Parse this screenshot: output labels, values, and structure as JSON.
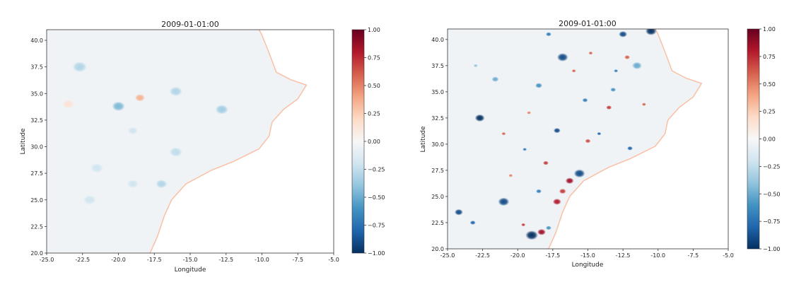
{
  "chart_data": [
    {
      "type": "heatmap",
      "title": "2009-01-01:00",
      "xlabel": "Longitude",
      "ylabel": "Latitude",
      "xlim": [
        -25.0,
        -5.0
      ],
      "ylim": [
        20.0,
        41.0
      ],
      "x_ticks": [
        -25.0,
        -22.5,
        -20.0,
        -17.5,
        -15.0,
        -12.5,
        -10.0,
        -7.5,
        -5.0
      ],
      "x_tick_labels": [
        "-25.0",
        "-22.5",
        "-20.0",
        "-17.5",
        "-15.0",
        "-12.5",
        "-10.0",
        "-7.5",
        "-5.0"
      ],
      "y_ticks": [
        20.0,
        22.5,
        25.0,
        27.5,
        30.0,
        32.5,
        35.0,
        37.5,
        40.0
      ],
      "y_tick_labels": [
        "20.0",
        "22.5",
        "25.0",
        "27.5",
        "30.0",
        "32.5",
        "35.0",
        "37.5",
        "40.0"
      ],
      "colorbar": {
        "range": [
          -1.0,
          1.0
        ],
        "colormap": [
          "#053061",
          "#2166ac",
          "#4393c3",
          "#92c5de",
          "#d1e5f0",
          "#f7f7f7",
          "#fddbc7",
          "#f4a582",
          "#d6604d",
          "#b2182b",
          "#67001f"
        ],
        "ticks": [
          1.0,
          0.75,
          0.5,
          0.25,
          0.0,
          -0.25,
          -0.5,
          -0.75,
          -1.0
        ],
        "tick_labels": [
          "1.00",
          "0.75",
          "0.50",
          "0.25",
          "0.00",
          "−0.25",
          "−0.50",
          "−0.75",
          "−1.00"
        ]
      },
      "coastline": [
        [
          -17.8,
          20.0
        ],
        [
          -17.3,
          21.5
        ],
        [
          -16.8,
          23.5
        ],
        [
          -16.3,
          25.0
        ],
        [
          -15.3,
          26.5
        ],
        [
          -13.5,
          27.8
        ],
        [
          -12.0,
          28.6
        ],
        [
          -10.2,
          29.8
        ],
        [
          -9.5,
          31.0
        ],
        [
          -9.3,
          32.3
        ],
        [
          -8.5,
          33.5
        ],
        [
          -7.5,
          34.5
        ],
        [
          -6.9,
          35.8
        ],
        [
          -8.0,
          36.3
        ],
        [
          -9.0,
          37.0
        ],
        [
          -9.5,
          38.8
        ],
        [
          -10.0,
          40.5
        ],
        [
          -10.2,
          41.0
        ]
      ],
      "eddies": [
        {
          "lon": -22.7,
          "lat": 37.5,
          "r": 0.5,
          "v": -0.3
        },
        {
          "lon": -20.0,
          "lat": 33.8,
          "r": 0.45,
          "v": -0.45
        },
        {
          "lon": -18.5,
          "lat": 34.6,
          "r": 0.35,
          "v": 0.35
        },
        {
          "lon": -16.0,
          "lat": 35.2,
          "r": 0.45,
          "v": -0.3
        },
        {
          "lon": -12.8,
          "lat": 33.5,
          "r": 0.45,
          "v": -0.35
        },
        {
          "lon": -19.0,
          "lat": 31.5,
          "r": 0.35,
          "v": -0.2
        },
        {
          "lon": -16.0,
          "lat": 29.5,
          "r": 0.45,
          "v": -0.25
        },
        {
          "lon": -21.5,
          "lat": 28.0,
          "r": 0.45,
          "v": -0.2
        },
        {
          "lon": -22.0,
          "lat": 25.0,
          "r": 0.45,
          "v": -0.2
        },
        {
          "lon": -19.0,
          "lat": 26.5,
          "r": 0.4,
          "v": -0.2
        },
        {
          "lon": -17.0,
          "lat": 26.5,
          "r": 0.4,
          "v": -0.3
        },
        {
          "lon": -23.5,
          "lat": 34.0,
          "r": 0.4,
          "v": 0.15
        }
      ]
    },
    {
      "type": "heatmap",
      "title": "2009-01-01:00",
      "xlabel": "Longitude",
      "ylabel": "Latitude",
      "xlim": [
        -25.0,
        -5.0
      ],
      "ylim": [
        20.0,
        41.0
      ],
      "x_ticks": [
        -25.0,
        -22.5,
        -20.0,
        -17.5,
        -15.0,
        -12.5,
        -10.0,
        -7.5,
        -5.0
      ],
      "x_tick_labels": [
        "-25.0",
        "-22.5",
        "-20.0",
        "-17.5",
        "-15.0",
        "-12.5",
        "-10.0",
        "-7.5",
        "-5.0"
      ],
      "y_ticks": [
        20.0,
        22.5,
        25.0,
        27.5,
        30.0,
        32.5,
        35.0,
        37.5,
        40.0
      ],
      "y_tick_labels": [
        "20.0",
        "22.5",
        "25.0",
        "27.5",
        "30.0",
        "32.5",
        "35.0",
        "37.5",
        "40.0"
      ],
      "colorbar": {
        "range": [
          -1.0,
          1.0
        ],
        "colormap": [
          "#053061",
          "#2166ac",
          "#4393c3",
          "#92c5de",
          "#d1e5f0",
          "#f7f7f7",
          "#fddbc7",
          "#f4a582",
          "#d6604d",
          "#b2182b",
          "#67001f"
        ],
        "ticks": [
          1.0,
          0.75,
          0.5,
          0.25,
          0.0,
          -0.25,
          -0.5,
          -0.75,
          -1.0
        ],
        "tick_labels": [
          "1.00",
          "0.75",
          "0.50",
          "0.25",
          "0.00",
          "−0.25",
          "−0.50",
          "−0.75",
          "−1.00"
        ]
      },
      "coastline": [
        [
          -17.8,
          20.0
        ],
        [
          -17.3,
          21.5
        ],
        [
          -16.8,
          23.5
        ],
        [
          -16.3,
          25.0
        ],
        [
          -15.3,
          26.5
        ],
        [
          -13.5,
          27.8
        ],
        [
          -12.0,
          28.6
        ],
        [
          -10.2,
          29.8
        ],
        [
          -9.5,
          31.0
        ],
        [
          -9.3,
          32.3
        ],
        [
          -8.5,
          33.5
        ],
        [
          -7.5,
          34.5
        ],
        [
          -6.9,
          35.8
        ],
        [
          -8.0,
          36.3
        ],
        [
          -9.0,
          37.0
        ],
        [
          -9.5,
          38.8
        ],
        [
          -10.0,
          40.5
        ],
        [
          -10.2,
          41.0
        ]
      ],
      "eddies": [
        {
          "lon": -22.7,
          "lat": 32.5,
          "r": 0.35,
          "v": -1.0
        },
        {
          "lon": -21.0,
          "lat": 24.5,
          "r": 0.4,
          "v": -0.9
        },
        {
          "lon": -24.2,
          "lat": 23.5,
          "r": 0.3,
          "v": -0.9
        },
        {
          "lon": -23.2,
          "lat": 22.5,
          "r": 0.2,
          "v": -0.8
        },
        {
          "lon": -19.0,
          "lat": 21.3,
          "r": 0.45,
          "v": -1.0
        },
        {
          "lon": -18.3,
          "lat": 21.6,
          "r": 0.3,
          "v": 0.85
        },
        {
          "lon": -17.2,
          "lat": 24.5,
          "r": 0.3,
          "v": 0.8
        },
        {
          "lon": -16.8,
          "lat": 25.5,
          "r": 0.25,
          "v": 0.7
        },
        {
          "lon": -16.3,
          "lat": 26.5,
          "r": 0.3,
          "v": 0.85
        },
        {
          "lon": -15.6,
          "lat": 27.2,
          "r": 0.4,
          "v": -0.9
        },
        {
          "lon": -16.8,
          "lat": 38.3,
          "r": 0.4,
          "v": -0.9
        },
        {
          "lon": -18.5,
          "lat": 35.6,
          "r": 0.25,
          "v": -0.6
        },
        {
          "lon": -17.2,
          "lat": 31.3,
          "r": 0.25,
          "v": -0.9
        },
        {
          "lon": -12.5,
          "lat": 40.5,
          "r": 0.3,
          "v": -0.9
        },
        {
          "lon": -10.5,
          "lat": 40.8,
          "r": 0.4,
          "v": -1.0
        },
        {
          "lon": -11.5,
          "lat": 37.5,
          "r": 0.35,
          "v": -0.5
        },
        {
          "lon": -12.2,
          "lat": 38.3,
          "r": 0.2,
          "v": 0.6
        },
        {
          "lon": -17.8,
          "lat": 40.5,
          "r": 0.2,
          "v": -0.7
        },
        {
          "lon": -21.6,
          "lat": 36.2,
          "r": 0.25,
          "v": -0.5
        },
        {
          "lon": -15.2,
          "lat": 34.2,
          "r": 0.2,
          "v": -0.7
        },
        {
          "lon": -13.5,
          "lat": 33.5,
          "r": 0.2,
          "v": 0.7
        },
        {
          "lon": -14.2,
          "lat": 31.0,
          "r": 0.15,
          "v": -0.8
        },
        {
          "lon": -12.0,
          "lat": 29.6,
          "r": 0.2,
          "v": -0.8
        },
        {
          "lon": -18.0,
          "lat": 28.2,
          "r": 0.2,
          "v": 0.7
        },
        {
          "lon": -19.5,
          "lat": 29.5,
          "r": 0.15,
          "v": -0.7
        },
        {
          "lon": -21.0,
          "lat": 31.0,
          "r": 0.15,
          "v": 0.6
        },
        {
          "lon": -18.5,
          "lat": 25.5,
          "r": 0.2,
          "v": -0.7
        },
        {
          "lon": -19.6,
          "lat": 22.3,
          "r": 0.15,
          "v": 0.7
        },
        {
          "lon": -17.8,
          "lat": 22.0,
          "r": 0.2,
          "v": -0.6
        },
        {
          "lon": -15.0,
          "lat": 30.3,
          "r": 0.2,
          "v": 0.65
        },
        {
          "lon": -13.0,
          "lat": 37.0,
          "r": 0.15,
          "v": -0.7
        },
        {
          "lon": -14.8,
          "lat": 38.7,
          "r": 0.15,
          "v": 0.6
        },
        {
          "lon": -19.2,
          "lat": 33.0,
          "r": 0.15,
          "v": 0.5
        },
        {
          "lon": -23.0,
          "lat": 37.5,
          "r": 0.15,
          "v": -0.4
        },
        {
          "lon": -20.5,
          "lat": 27.0,
          "r": 0.15,
          "v": 0.5
        },
        {
          "lon": -11.0,
          "lat": 33.8,
          "r": 0.15,
          "v": 0.6
        },
        {
          "lon": -13.2,
          "lat": 35.2,
          "r": 0.2,
          "v": -0.6
        },
        {
          "lon": -16.0,
          "lat": 37.0,
          "r": 0.15,
          "v": 0.6
        }
      ]
    }
  ]
}
